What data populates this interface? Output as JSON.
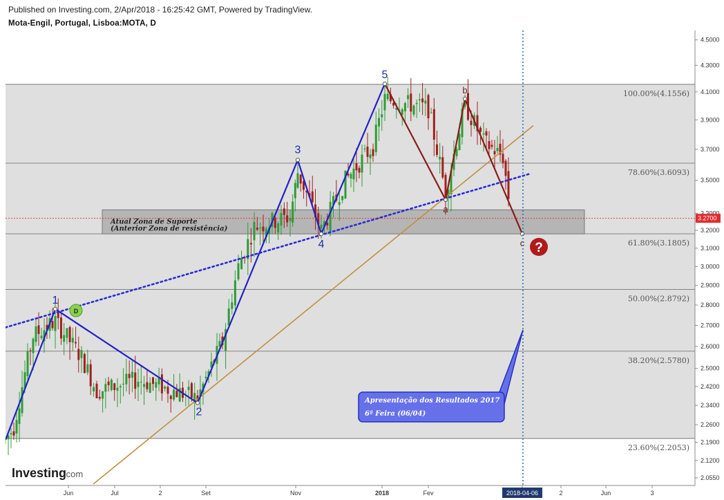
{
  "header": {
    "published": "Published on Investing.com, 2/Apr/2018 - 16:25:42 GMT, Powered by TradingView.",
    "symbol": "Mota-Engil, Portugal, Lisboa:MOTA, D"
  },
  "logo": {
    "brand": "Investing",
    "suffix": ".com"
  },
  "chart_data": {
    "type": "candlestick",
    "title": "Mota-Engil, Portugal, Lisboa:MOTA, D",
    "y_axis": {
      "ticks": [
        4.5,
        4.3,
        4.1,
        3.9,
        3.7,
        3.5,
        3.3,
        3.2,
        3.1,
        3.0,
        2.9,
        2.8,
        2.7,
        2.6,
        2.5,
        2.42,
        2.34,
        2.26,
        2.19,
        2.12,
        2.055
      ],
      "tick_labels": [
        "4.5000",
        "4.3000",
        "4.1000",
        "3.9000",
        "3.7000",
        "3.5000",
        "3.3000",
        "3.2000",
        "3.1000",
        "3.0000",
        "2.9000",
        "2.8000",
        "2.7000",
        "2.6000",
        "2.5000",
        "2.4200",
        "2.3400",
        "2.2600",
        "2.1900",
        "2.1200",
        "2.0550"
      ],
      "scale": "log"
    },
    "x_axis": {
      "labels": [
        "Jun",
        "Jul",
        "2",
        "Set",
        "Nov",
        "2018",
        "Fev",
        "2018-04-06",
        "2",
        "Jun",
        "3"
      ],
      "highlighted": "2018-04-06"
    },
    "last_price": {
      "value": 3.27,
      "label": "3.2700",
      "color": "#e22b2b"
    },
    "fibonacci_levels": [
      {
        "ratio": "100.00%",
        "price": 4.1556,
        "label": "100.00%(4.1556)"
      },
      {
        "ratio": "78.60%",
        "price": 3.6093,
        "label": "78.60%(3.6093)"
      },
      {
        "ratio": "61.80%",
        "price": 3.1805,
        "label": "61.80%(3.1805)"
      },
      {
        "ratio": "50.00%",
        "price": 2.8792,
        "label": "50.00%(2.8792)"
      },
      {
        "ratio": "38.20%",
        "price": 2.578,
        "label": "38.20%(2.5780)"
      },
      {
        "ratio": "23.60%",
        "price": 2.2053,
        "label": "23.60%(2.2053)"
      }
    ],
    "elliott_waves": [
      {
        "label": "1",
        "date_label": "Jun",
        "price": 2.78
      },
      {
        "label": "2",
        "date_label": "Set",
        "price": 2.35
      },
      {
        "label": "3",
        "date_label": "Nov",
        "price": 3.63
      },
      {
        "label": "4",
        "date_label": "Nov",
        "price": 3.18
      },
      {
        "label": "5",
        "date_label": "2018",
        "price": 4.16
      }
    ],
    "correction_waves": [
      {
        "label": "a",
        "price": 3.38
      },
      {
        "label": "b",
        "price": 4.05
      },
      {
        "label": "c",
        "price": 3.18
      }
    ],
    "support_zone": {
      "top": 3.32,
      "bottom": 3.18,
      "line1": "Atual Zona de Suporte",
      "line2": "(Anterior Zona de resistência)"
    },
    "annotations": {
      "callout_line1": "Apresentação dos Resultados 2017",
      "callout_line2": "6ª Feira (06/04)",
      "marker_d": "D",
      "question_mark": "?"
    },
    "colors": {
      "impulse": "#2121c8",
      "correction": "#8b1a1a",
      "trendline": "#c09040",
      "dotted": "#2a2ad8",
      "vline": "#2c6fb5",
      "callout": "#6670e8",
      "question": "#b01a1a"
    }
  }
}
